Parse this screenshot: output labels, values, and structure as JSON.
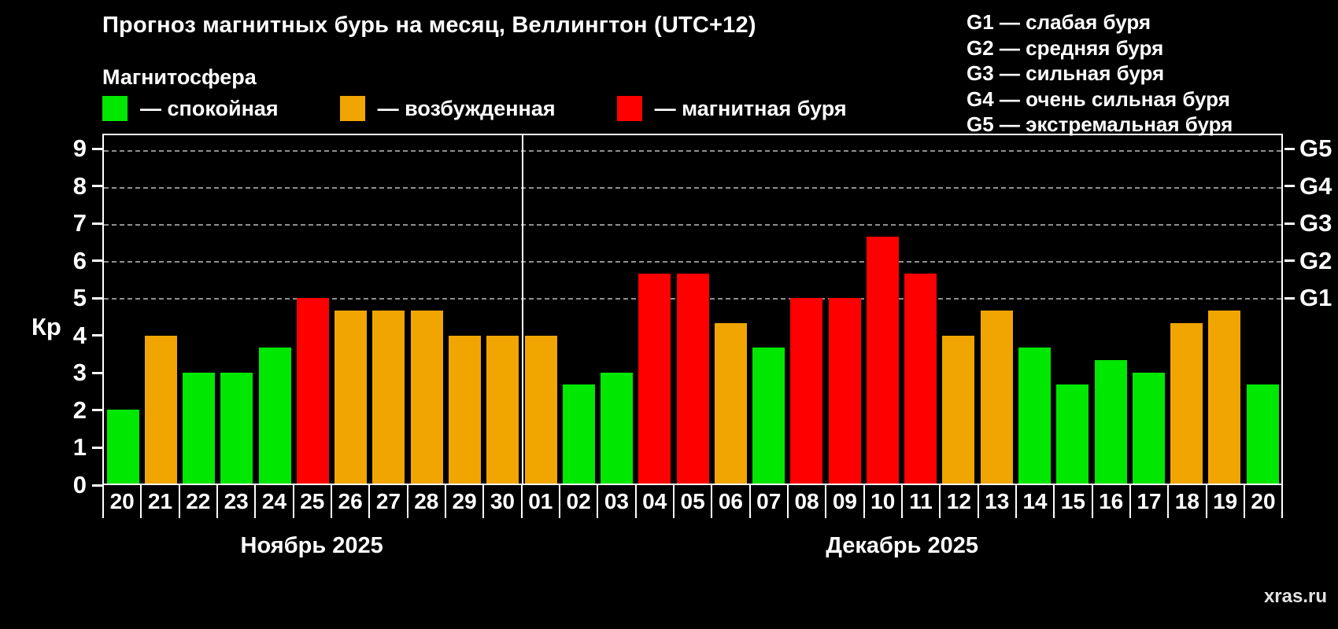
{
  "title": "Прогноз магнитных бурь на месяц, Веллингтон (UTC+12)",
  "legend": {
    "heading": "Магнитосфера",
    "items": [
      {
        "label": "— спокойная",
        "status": "calm",
        "color": "#00e700"
      },
      {
        "label": "— возбужденная",
        "status": "excited",
        "color": "#f0a500"
      },
      {
        "label": "— магнитная буря",
        "status": "storm",
        "color": "#ff0000"
      }
    ]
  },
  "g_legend": [
    "G1 — слабая буря",
    "G2 — средняя буря",
    "G3 — сильная буря",
    "G4 — очень сильная буря",
    "G5 — экстремальная буря"
  ],
  "ylabel": "Кр",
  "watermark": "xras.ru",
  "chart_data": {
    "type": "bar",
    "title": "Прогноз магнитных бурь на месяц, Веллингтон (UTC+12)",
    "ylabel": "Кр",
    "ylim": [
      0,
      9.4
    ],
    "yticks": [
      0,
      1,
      2,
      3,
      4,
      5,
      6,
      7,
      8,
      9
    ],
    "grid": "dashed-horizontal-at-g-levels",
    "g_levels": [
      {
        "label": "G1",
        "kp": 5
      },
      {
        "label": "G2",
        "kp": 6
      },
      {
        "label": "G3",
        "kp": 7
      },
      {
        "label": "G4",
        "kp": 8
      },
      {
        "label": "G5",
        "kp": 9
      }
    ],
    "months": [
      {
        "label": "Ноябрь 2025",
        "start_index": 0,
        "days": 11
      },
      {
        "label": "Декабрь 2025",
        "start_index": 11,
        "days": 20
      }
    ],
    "categories": [
      "20",
      "21",
      "22",
      "23",
      "24",
      "25",
      "26",
      "27",
      "28",
      "29",
      "30",
      "01",
      "02",
      "03",
      "04",
      "05",
      "06",
      "07",
      "08",
      "09",
      "10",
      "11",
      "12",
      "13",
      "14",
      "15",
      "16",
      "17",
      "18",
      "19",
      "20"
    ],
    "values": [
      2,
      4,
      3,
      3,
      3.67,
      5,
      4.67,
      4.67,
      4.67,
      4,
      4,
      4,
      2.67,
      3,
      5.67,
      5.67,
      4.33,
      3.67,
      5,
      5,
      6.67,
      5.67,
      4,
      4.67,
      3.67,
      2.67,
      3.33,
      3,
      4.33,
      4.67,
      2.67
    ],
    "statuses": [
      "calm",
      "excited",
      "calm",
      "calm",
      "calm",
      "storm",
      "excited",
      "excited",
      "excited",
      "excited",
      "excited",
      "excited",
      "calm",
      "calm",
      "storm",
      "storm",
      "excited",
      "calm",
      "storm",
      "storm",
      "storm",
      "storm",
      "excited",
      "excited",
      "calm",
      "calm",
      "calm",
      "calm",
      "excited",
      "excited",
      "calm"
    ],
    "status_colors": {
      "calm": "#00e700",
      "excited": "#f0a500",
      "storm": "#ff0000"
    }
  }
}
